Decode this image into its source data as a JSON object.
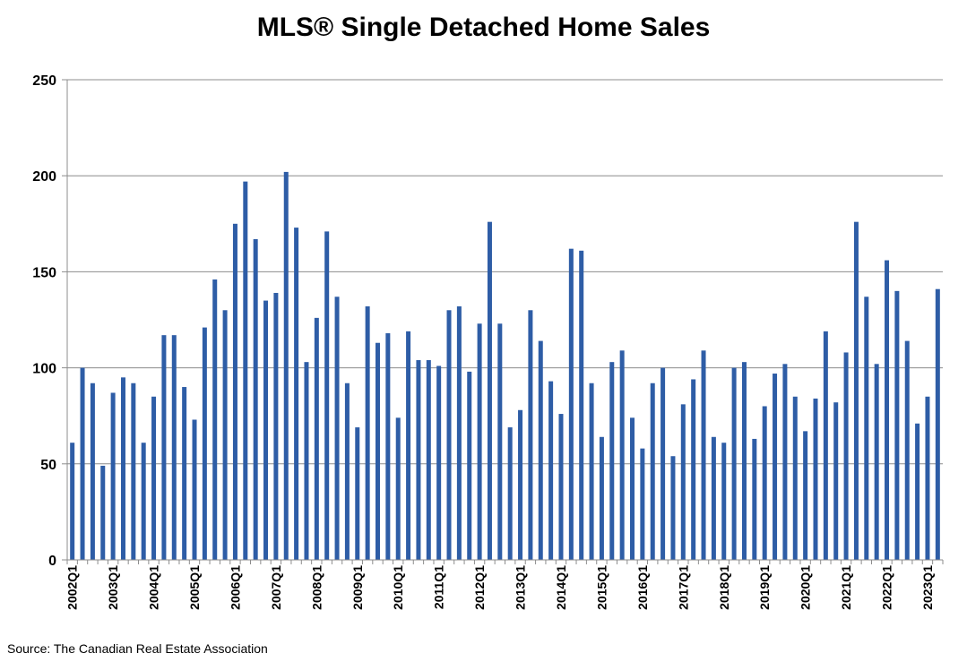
{
  "chart_data": {
    "type": "bar",
    "title": "MLS® Single Detached Home Sales",
    "source": "Source: The Canadian Real Estate Association",
    "xlabel": "",
    "ylabel": "",
    "ylim": [
      0,
      250
    ],
    "yticks": [
      0,
      50,
      100,
      150,
      200,
      250
    ],
    "grid": true,
    "legend": "none",
    "bar_color": "#2E5DA6",
    "grid_color": "#8C8C8C",
    "categories": [
      "2002Q1",
      "2002Q2",
      "2002Q3",
      "2002Q4",
      "2003Q1",
      "2003Q2",
      "2003Q3",
      "2003Q4",
      "2004Q1",
      "2004Q2",
      "2004Q3",
      "2004Q4",
      "2005Q1",
      "2005Q2",
      "2005Q3",
      "2005Q4",
      "2006Q1",
      "2006Q2",
      "2006Q3",
      "2006Q4",
      "2007Q1",
      "2007Q2",
      "2007Q3",
      "2007Q4",
      "2008Q1",
      "2008Q2",
      "2008Q3",
      "2008Q4",
      "2009Q1",
      "2009Q2",
      "2009Q3",
      "2009Q4",
      "2010Q1",
      "2010Q2",
      "2010Q3",
      "2010Q4",
      "2011Q1",
      "2011Q2",
      "2011Q3",
      "2011Q4",
      "2012Q1",
      "2012Q2",
      "2012Q3",
      "2012Q4",
      "2013Q1",
      "2013Q2",
      "2013Q3",
      "2013Q4",
      "2014Q1",
      "2014Q2",
      "2014Q3",
      "2014Q4",
      "2015Q1",
      "2015Q2",
      "2015Q3",
      "2015Q4",
      "2016Q1",
      "2016Q2",
      "2016Q3",
      "2016Q4",
      "2017Q1",
      "2017Q2",
      "2017Q3",
      "2017Q4",
      "2018Q1",
      "2018Q2",
      "2018Q3",
      "2018Q4",
      "2019Q1",
      "2019Q2",
      "2019Q3",
      "2019Q4",
      "2020Q1",
      "2020Q2",
      "2020Q3",
      "2020Q4",
      "2021Q1",
      "2021Q2",
      "2021Q3",
      "2021Q4",
      "2022Q1",
      "2022Q2",
      "2022Q3",
      "2022Q4",
      "2023Q1",
      "2023Q2"
    ],
    "tick_labels": [
      "2002Q1",
      "2003Q1",
      "2004Q1",
      "2005Q1",
      "2006Q1",
      "2007Q1",
      "2008Q1",
      "2009Q1",
      "2010Q1",
      "2011Q1",
      "2012Q1",
      "2013Q1",
      "2014Q1",
      "2015Q1",
      "2016Q1",
      "2017Q1",
      "2018Q1",
      "2019Q1",
      "2020Q1",
      "2021Q1",
      "2022Q1",
      "2023Q1"
    ],
    "values": [
      61,
      100,
      92,
      49,
      87,
      95,
      92,
      61,
      85,
      117,
      117,
      90,
      73,
      121,
      146,
      130,
      175,
      197,
      167,
      135,
      139,
      202,
      173,
      103,
      126,
      171,
      137,
      92,
      69,
      132,
      113,
      118,
      74,
      119,
      104,
      104,
      101,
      130,
      132,
      98,
      123,
      176,
      123,
      69,
      78,
      130,
      114,
      93,
      76,
      162,
      161,
      92,
      64,
      103,
      109,
      74,
      58,
      92,
      100,
      54,
      81,
      94,
      109,
      64,
      61,
      100,
      103,
      63,
      80,
      97,
      102,
      85,
      67,
      84,
      119,
      82,
      108,
      176,
      137,
      102,
      156,
      140,
      114,
      71,
      85,
      141
    ]
  }
}
